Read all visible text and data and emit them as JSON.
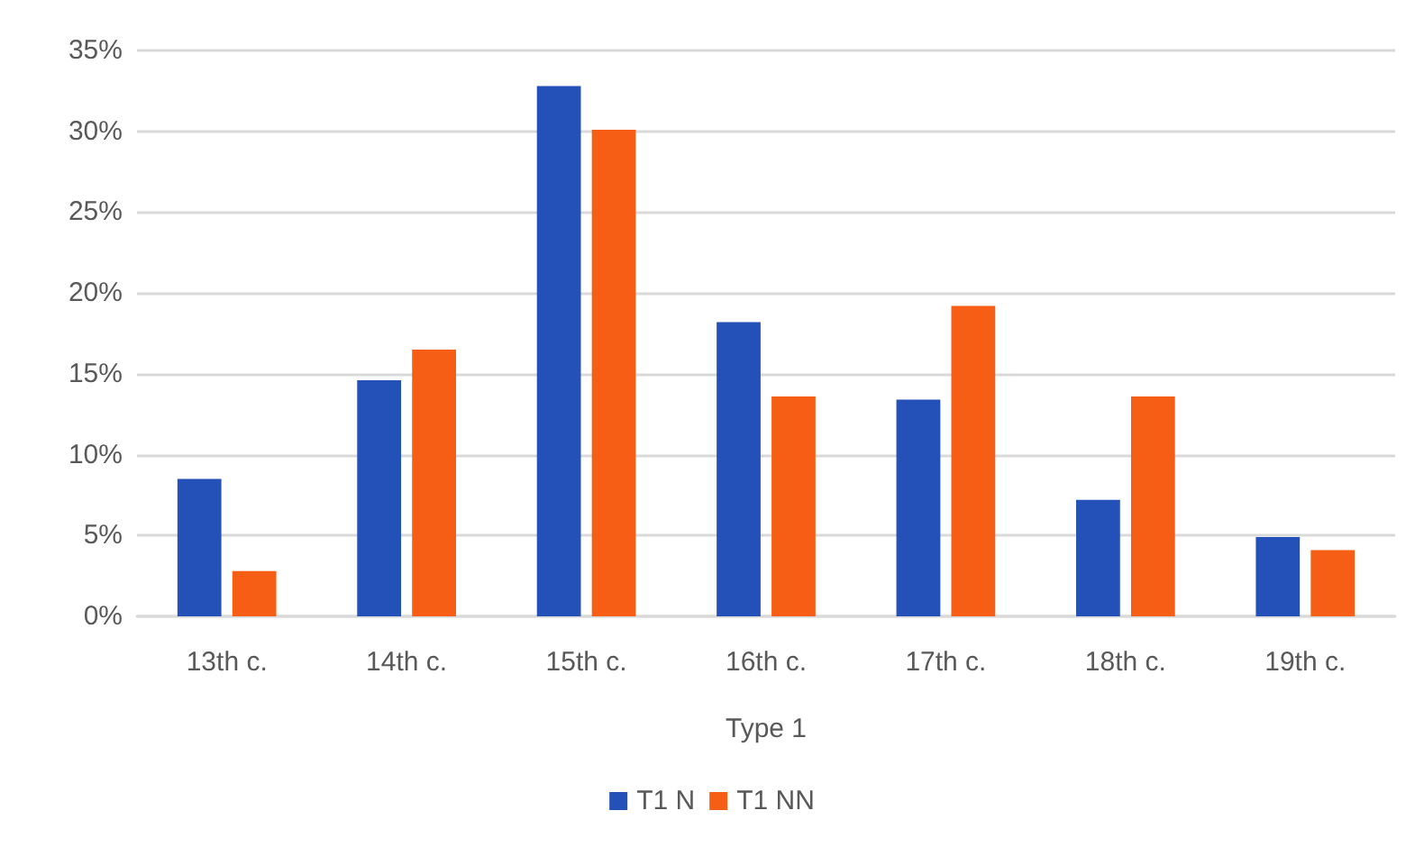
{
  "chart_data": {
    "type": "bar",
    "xlabel": "Type 1",
    "categories": [
      "13th c.",
      "14th c.",
      "15th c.",
      "16th c.",
      "17th c.",
      "18th c.",
      "19th c."
    ],
    "series": [
      {
        "name": "T1 N",
        "color": "#2451b7",
        "values": [
          8.5,
          14.6,
          32.8,
          18.2,
          13.4,
          7.2,
          4.9
        ]
      },
      {
        "name": "T1 NN",
        "color": "#f55e14",
        "values": [
          2.8,
          16.5,
          30.1,
          13.6,
          19.2,
          13.6,
          4.1
        ]
      }
    ],
    "ylim": [
      0,
      35
    ],
    "yticks": [
      {
        "value": 0,
        "label": "0%"
      },
      {
        "value": 5,
        "label": "5%"
      },
      {
        "value": 10,
        "label": "10%"
      },
      {
        "value": 15,
        "label": "15%"
      },
      {
        "value": 20,
        "label": "20%"
      },
      {
        "value": 25,
        "label": "25%"
      },
      {
        "value": 30,
        "label": "30%"
      },
      {
        "value": 35,
        "label": "35%"
      }
    ],
    "grid": "y",
    "legend": "bottom"
  }
}
